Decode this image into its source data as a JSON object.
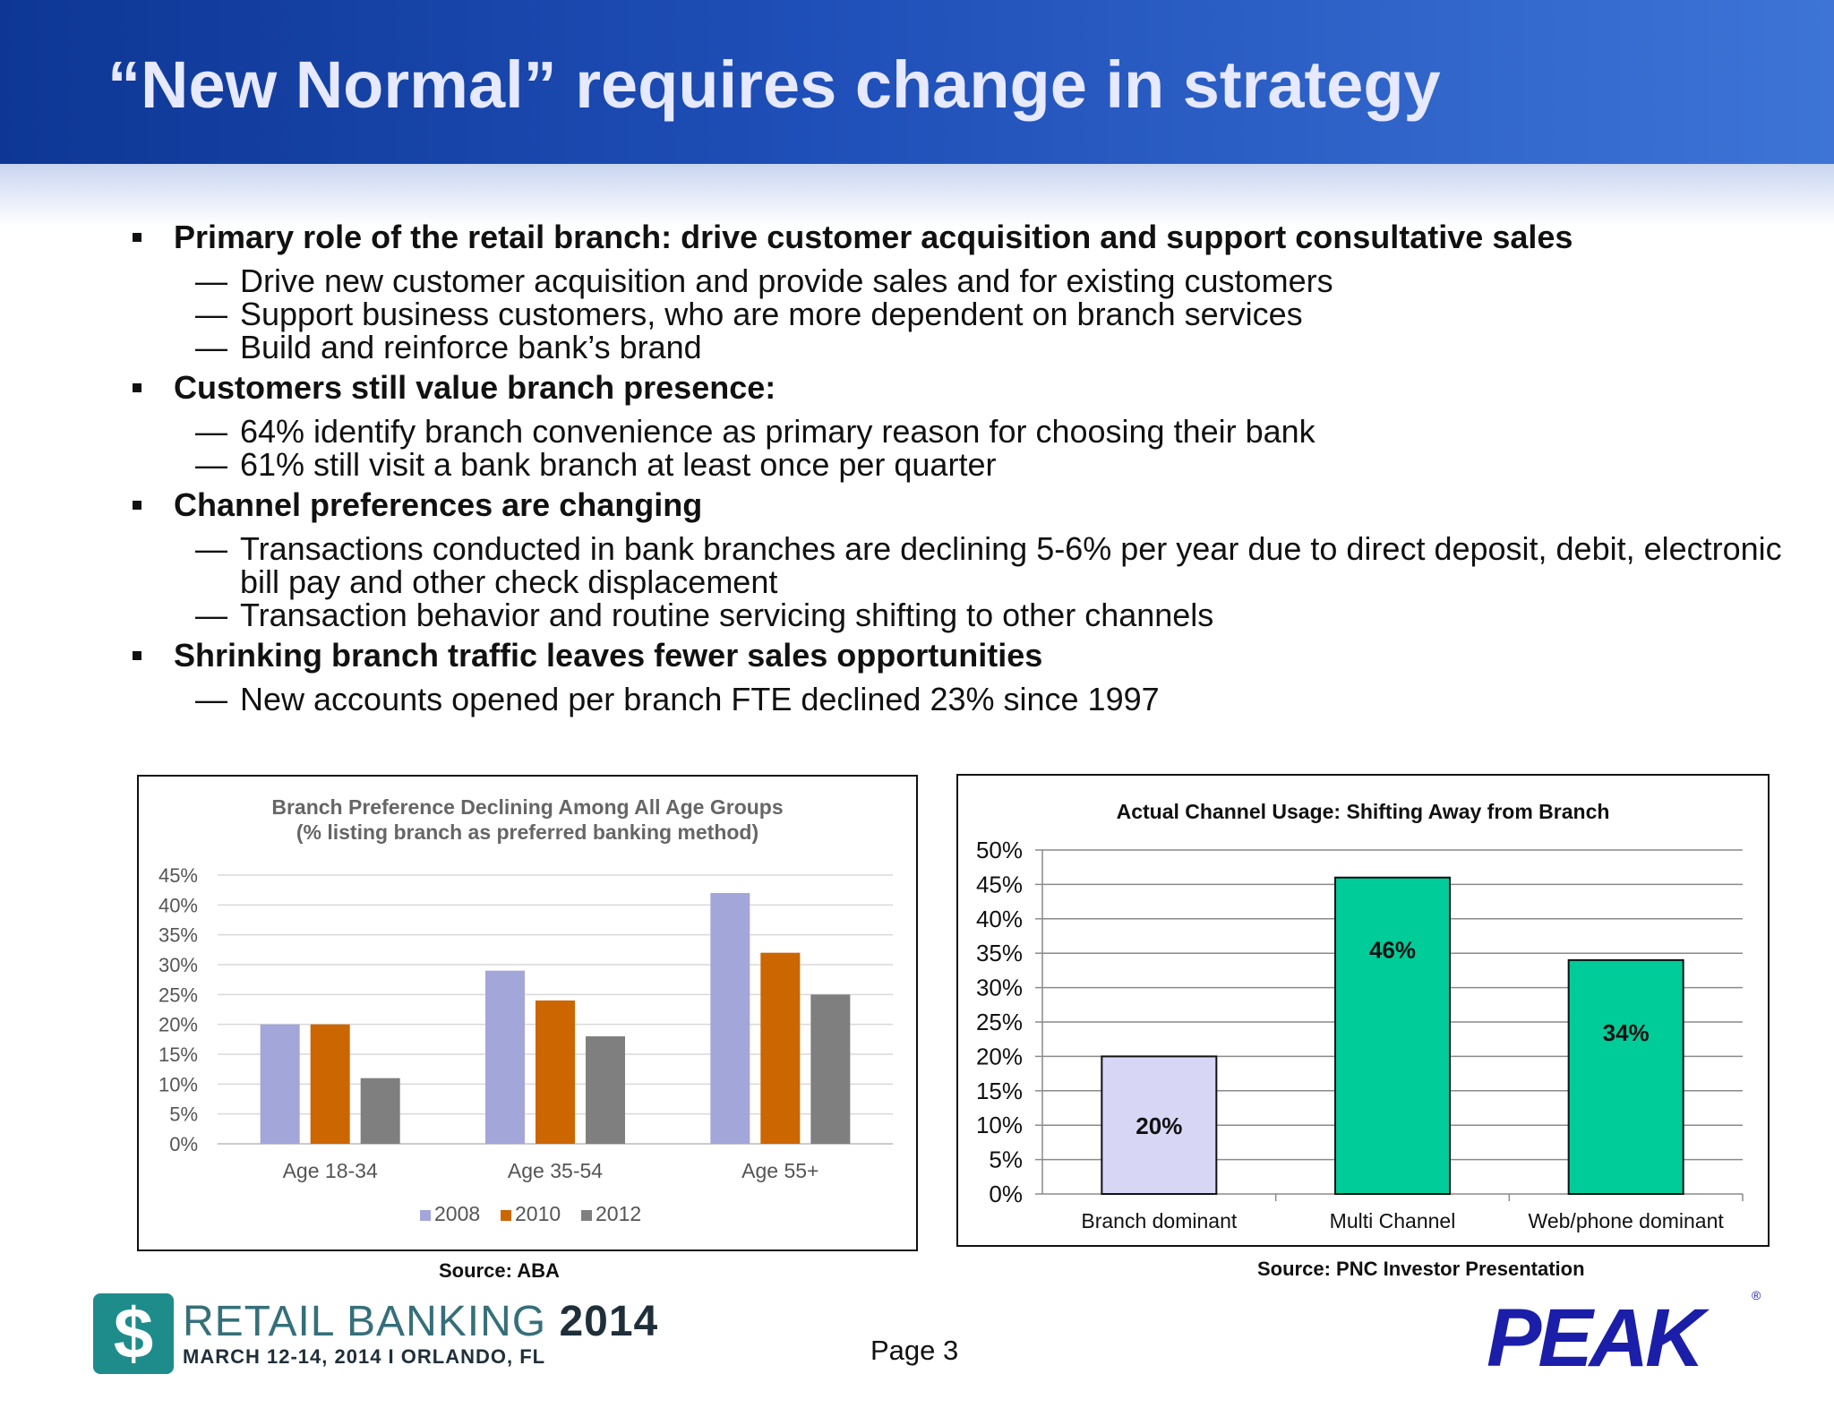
{
  "title": "“New Normal” requires change in strategy",
  "bullets": [
    {
      "text": "Primary role of the retail branch: drive customer acquisition and support consultative sales",
      "subs": [
        "Drive new customer acquisition and provide sales and for existing customers",
        "Support business customers, who are more dependent on branch services",
        "Build and reinforce bank’s brand"
      ]
    },
    {
      "text": "Customers still value branch presence:",
      "subs": [
        "64%  identify branch convenience as primary reason for choosing their bank",
        "61% still visit a bank branch at least once per quarter"
      ]
    },
    {
      "text": "Channel preferences are changing",
      "subs": [
        "Transactions conducted in bank branches are declining 5-6% per year due to direct deposit, debit, electronic bill pay and other check displacement",
        "Transaction behavior and routine servicing shifting to other channels"
      ]
    },
    {
      "text": "Shrinking branch traffic leaves fewer sales opportunities",
      "subs": [
        "New accounts opened per branch FTE declined 23% since 1997"
      ]
    }
  ],
  "dash": "—",
  "sources": {
    "left": "Source: ABA",
    "right": "Source: PNC Investor Presentation"
  },
  "page_label": "Page 3",
  "logo_left": {
    "s": "$",
    "name": "RETAIL BANKING",
    "year": "2014",
    "sub": "MARCH 12-14, 2014 I ORLANDO, FL"
  },
  "logo_right": {
    "name": "PEAK",
    "mark": "®"
  },
  "chart_data": [
    {
      "type": "bar",
      "title": "Branch Preference Declining Among All Age Groups",
      "subtitle": "(% listing branch as preferred banking method)",
      "categories": [
        "Age 18-34",
        "Age 35-54",
        "Age 55+"
      ],
      "series": [
        {
          "name": "2008",
          "color": "#a3a6d9",
          "values": [
            20,
            29,
            42
          ]
        },
        {
          "name": "2010",
          "color": "#cc6600",
          "values": [
            20,
            24,
            32
          ]
        },
        {
          "name": "2012",
          "color": "#7f7f7f",
          "values": [
            11,
            18,
            25
          ]
        }
      ],
      "yticks": [
        "0%",
        "5%",
        "10%",
        "15%",
        "20%",
        "25%",
        "30%",
        "35%",
        "40%",
        "45%"
      ],
      "ylim": [
        0,
        45
      ],
      "legend": "bottom",
      "grid": true
    },
    {
      "type": "bar",
      "title": "Actual Channel Usage:  Shifting Away from Branch",
      "categories": [
        "Branch dominant",
        "Multi Channel",
        "Web/phone dominant"
      ],
      "values": [
        20,
        46,
        34
      ],
      "data_labels": [
        "20%",
        "46%",
        "34%"
      ],
      "colors": [
        "#d7d7f5",
        "#00cc99",
        "#00cc99"
      ],
      "yticks": [
        "0%",
        "5%",
        "10%",
        "15%",
        "20%",
        "25%",
        "30%",
        "35%",
        "40%",
        "45%",
        "50%"
      ],
      "ylim": [
        0,
        50
      ],
      "grid": true
    }
  ]
}
